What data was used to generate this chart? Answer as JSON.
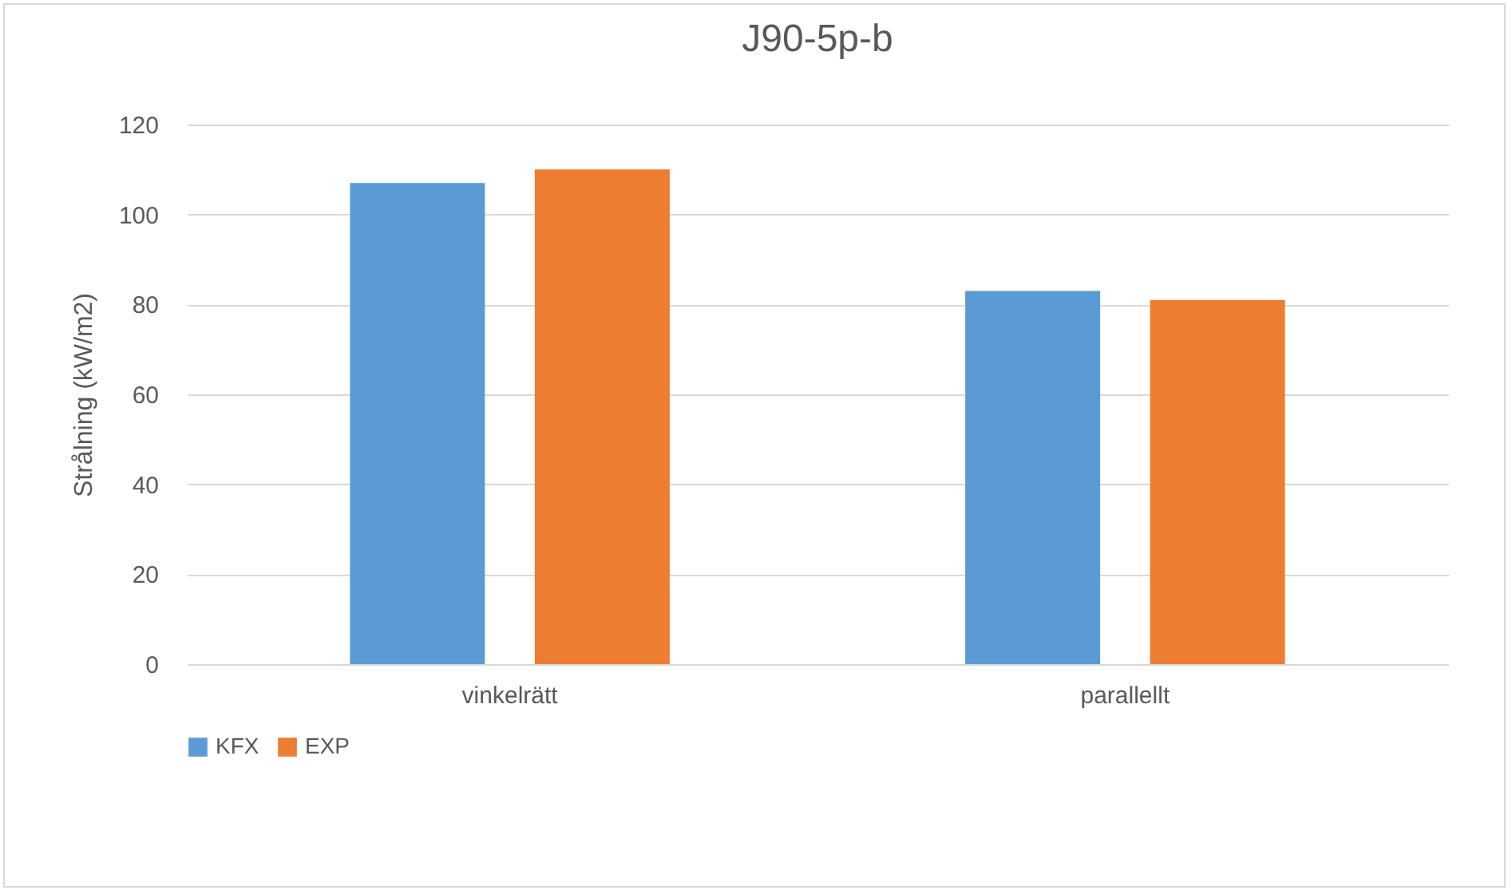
{
  "chart_data": {
    "type": "bar",
    "title": "J90-5p-b",
    "ylabel": "Strålning (kW/m2)",
    "categories": [
      "vinkelrätt",
      "parallellt"
    ],
    "series": [
      {
        "name": "KFX",
        "color": "#5b9bd5",
        "values": [
          107,
          83
        ]
      },
      {
        "name": "EXP",
        "color": "#ed7d31",
        "values": [
          110,
          81
        ]
      }
    ],
    "ylim": [
      0,
      120
    ],
    "yticks": [
      0,
      20,
      40,
      60,
      80,
      100,
      120
    ],
    "grid": "y",
    "legend": "bottom"
  }
}
